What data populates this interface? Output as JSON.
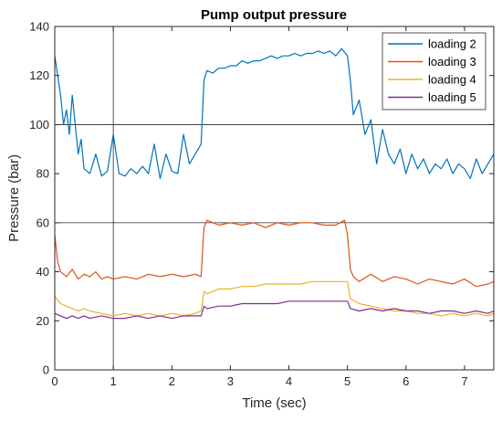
{
  "chart_data": {
    "type": "line",
    "title": "Pump output pressure",
    "xlabel": "Time (sec)",
    "ylabel": "Pressure (bar)",
    "xlim": [
      0,
      7.5
    ],
    "ylim": [
      0,
      140
    ],
    "xticks": [
      0,
      1,
      2,
      3,
      4,
      5,
      6,
      7
    ],
    "yticks": [
      0,
      20,
      40,
      60,
      80,
      100,
      120,
      140
    ],
    "grid": {
      "x": [
        1
      ],
      "y": [
        60,
        100
      ]
    },
    "legend_position": "top-right",
    "series": [
      {
        "name": "loading 2",
        "color": "#0072BD",
        "x": [
          0,
          0.05,
          0.1,
          0.15,
          0.2,
          0.25,
          0.3,
          0.35,
          0.4,
          0.45,
          0.5,
          0.6,
          0.7,
          0.8,
          0.9,
          1.0,
          1.1,
          1.2,
          1.3,
          1.4,
          1.5,
          1.6,
          1.7,
          1.8,
          1.9,
          2.0,
          2.1,
          2.2,
          2.3,
          2.4,
          2.5,
          2.55,
          2.6,
          2.7,
          2.8,
          2.9,
          3.0,
          3.1,
          3.2,
          3.3,
          3.4,
          3.5,
          3.6,
          3.7,
          3.8,
          3.9,
          4.0,
          4.1,
          4.2,
          4.3,
          4.4,
          4.5,
          4.6,
          4.7,
          4.8,
          4.9,
          5.0,
          5.05,
          5.1,
          5.2,
          5.3,
          5.4,
          5.5,
          5.6,
          5.7,
          5.8,
          5.9,
          6.0,
          6.1,
          6.2,
          6.3,
          6.4,
          6.5,
          6.6,
          6.7,
          6.8,
          6.9,
          7.0,
          7.1,
          7.2,
          7.3,
          7.4,
          7.5
        ],
        "y": [
          128,
          120,
          112,
          100,
          106,
          96,
          112,
          100,
          88,
          94,
          82,
          80,
          88,
          79,
          81,
          96,
          80,
          79,
          82,
          80,
          83,
          80,
          92,
          78,
          88,
          81,
          80,
          96,
          84,
          88,
          92,
          118,
          122,
          121,
          123,
          123,
          124,
          124,
          126,
          125,
          126,
          126,
          127,
          128,
          127,
          128,
          128,
          129,
          128,
          129,
          129,
          130,
          129,
          130,
          128,
          131,
          128,
          118,
          104,
          110,
          96,
          102,
          84,
          98,
          88,
          84,
          90,
          80,
          88,
          82,
          86,
          80,
          84,
          82,
          86,
          80,
          84,
          82,
          78,
          86,
          80,
          84,
          88
        ]
      },
      {
        "name": "loading 3",
        "color": "#D95319",
        "x": [
          0,
          0.05,
          0.1,
          0.2,
          0.3,
          0.4,
          0.5,
          0.6,
          0.7,
          0.8,
          0.9,
          1.0,
          1.2,
          1.4,
          1.6,
          1.8,
          2.0,
          2.2,
          2.4,
          2.5,
          2.55,
          2.6,
          2.8,
          3.0,
          3.2,
          3.4,
          3.6,
          3.8,
          4.0,
          4.2,
          4.4,
          4.6,
          4.8,
          4.95,
          5.0,
          5.05,
          5.1,
          5.2,
          5.4,
          5.6,
          5.8,
          6.0,
          6.2,
          6.4,
          6.6,
          6.8,
          7.0,
          7.2,
          7.4,
          7.5
        ],
        "y": [
          55,
          44,
          40,
          38,
          41,
          37,
          39,
          38,
          40,
          37,
          38,
          37,
          38,
          37,
          39,
          38,
          39,
          38,
          39,
          38,
          58,
          61,
          59,
          60,
          59,
          60,
          58,
          60,
          59,
          60,
          60,
          59,
          59,
          61,
          55,
          41,
          38,
          36,
          39,
          36,
          38,
          37,
          35,
          37,
          36,
          35,
          37,
          34,
          35,
          36
        ]
      },
      {
        "name": "loading 4",
        "color": "#EDB120",
        "x": [
          0,
          0.1,
          0.2,
          0.3,
          0.4,
          0.5,
          0.6,
          0.8,
          1.0,
          1.2,
          1.4,
          1.6,
          1.8,
          2.0,
          2.2,
          2.4,
          2.5,
          2.55,
          2.6,
          2.8,
          3.0,
          3.2,
          3.4,
          3.6,
          3.8,
          4.0,
          4.2,
          4.4,
          4.6,
          4.8,
          5.0,
          5.05,
          5.2,
          5.4,
          5.6,
          5.8,
          6.0,
          6.2,
          6.4,
          6.6,
          6.8,
          7.0,
          7.2,
          7.4,
          7.5
        ],
        "y": [
          30,
          27,
          26,
          25,
          24,
          25,
          24,
          23,
          22,
          23,
          22,
          23,
          22,
          23,
          22,
          23,
          24,
          32,
          31,
          33,
          33,
          34,
          34,
          35,
          35,
          35,
          35,
          36,
          36,
          36,
          36,
          29,
          27,
          26,
          25,
          24,
          24,
          23,
          23,
          22,
          23,
          22,
          23,
          22,
          23
        ]
      },
      {
        "name": "loading 5",
        "color": "#7E2F8E",
        "x": [
          0,
          0.1,
          0.2,
          0.3,
          0.4,
          0.5,
          0.6,
          0.8,
          1.0,
          1.2,
          1.4,
          1.6,
          1.8,
          2.0,
          2.2,
          2.4,
          2.5,
          2.55,
          2.6,
          2.8,
          3.0,
          3.2,
          3.4,
          3.6,
          3.8,
          4.0,
          4.2,
          4.4,
          4.6,
          4.8,
          5.0,
          5.05,
          5.2,
          5.4,
          5.6,
          5.8,
          6.0,
          6.2,
          6.4,
          6.6,
          6.8,
          7.0,
          7.2,
          7.4,
          7.5
        ],
        "y": [
          23,
          22,
          21,
          22,
          21,
          22,
          21,
          22,
          21,
          21,
          22,
          21,
          22,
          21,
          22,
          22,
          22,
          26,
          25,
          26,
          26,
          27,
          27,
          27,
          27,
          28,
          28,
          28,
          28,
          28,
          28,
          25,
          24,
          25,
          24,
          25,
          24,
          24,
          23,
          24,
          24,
          23,
          24,
          23,
          24
        ]
      }
    ]
  }
}
